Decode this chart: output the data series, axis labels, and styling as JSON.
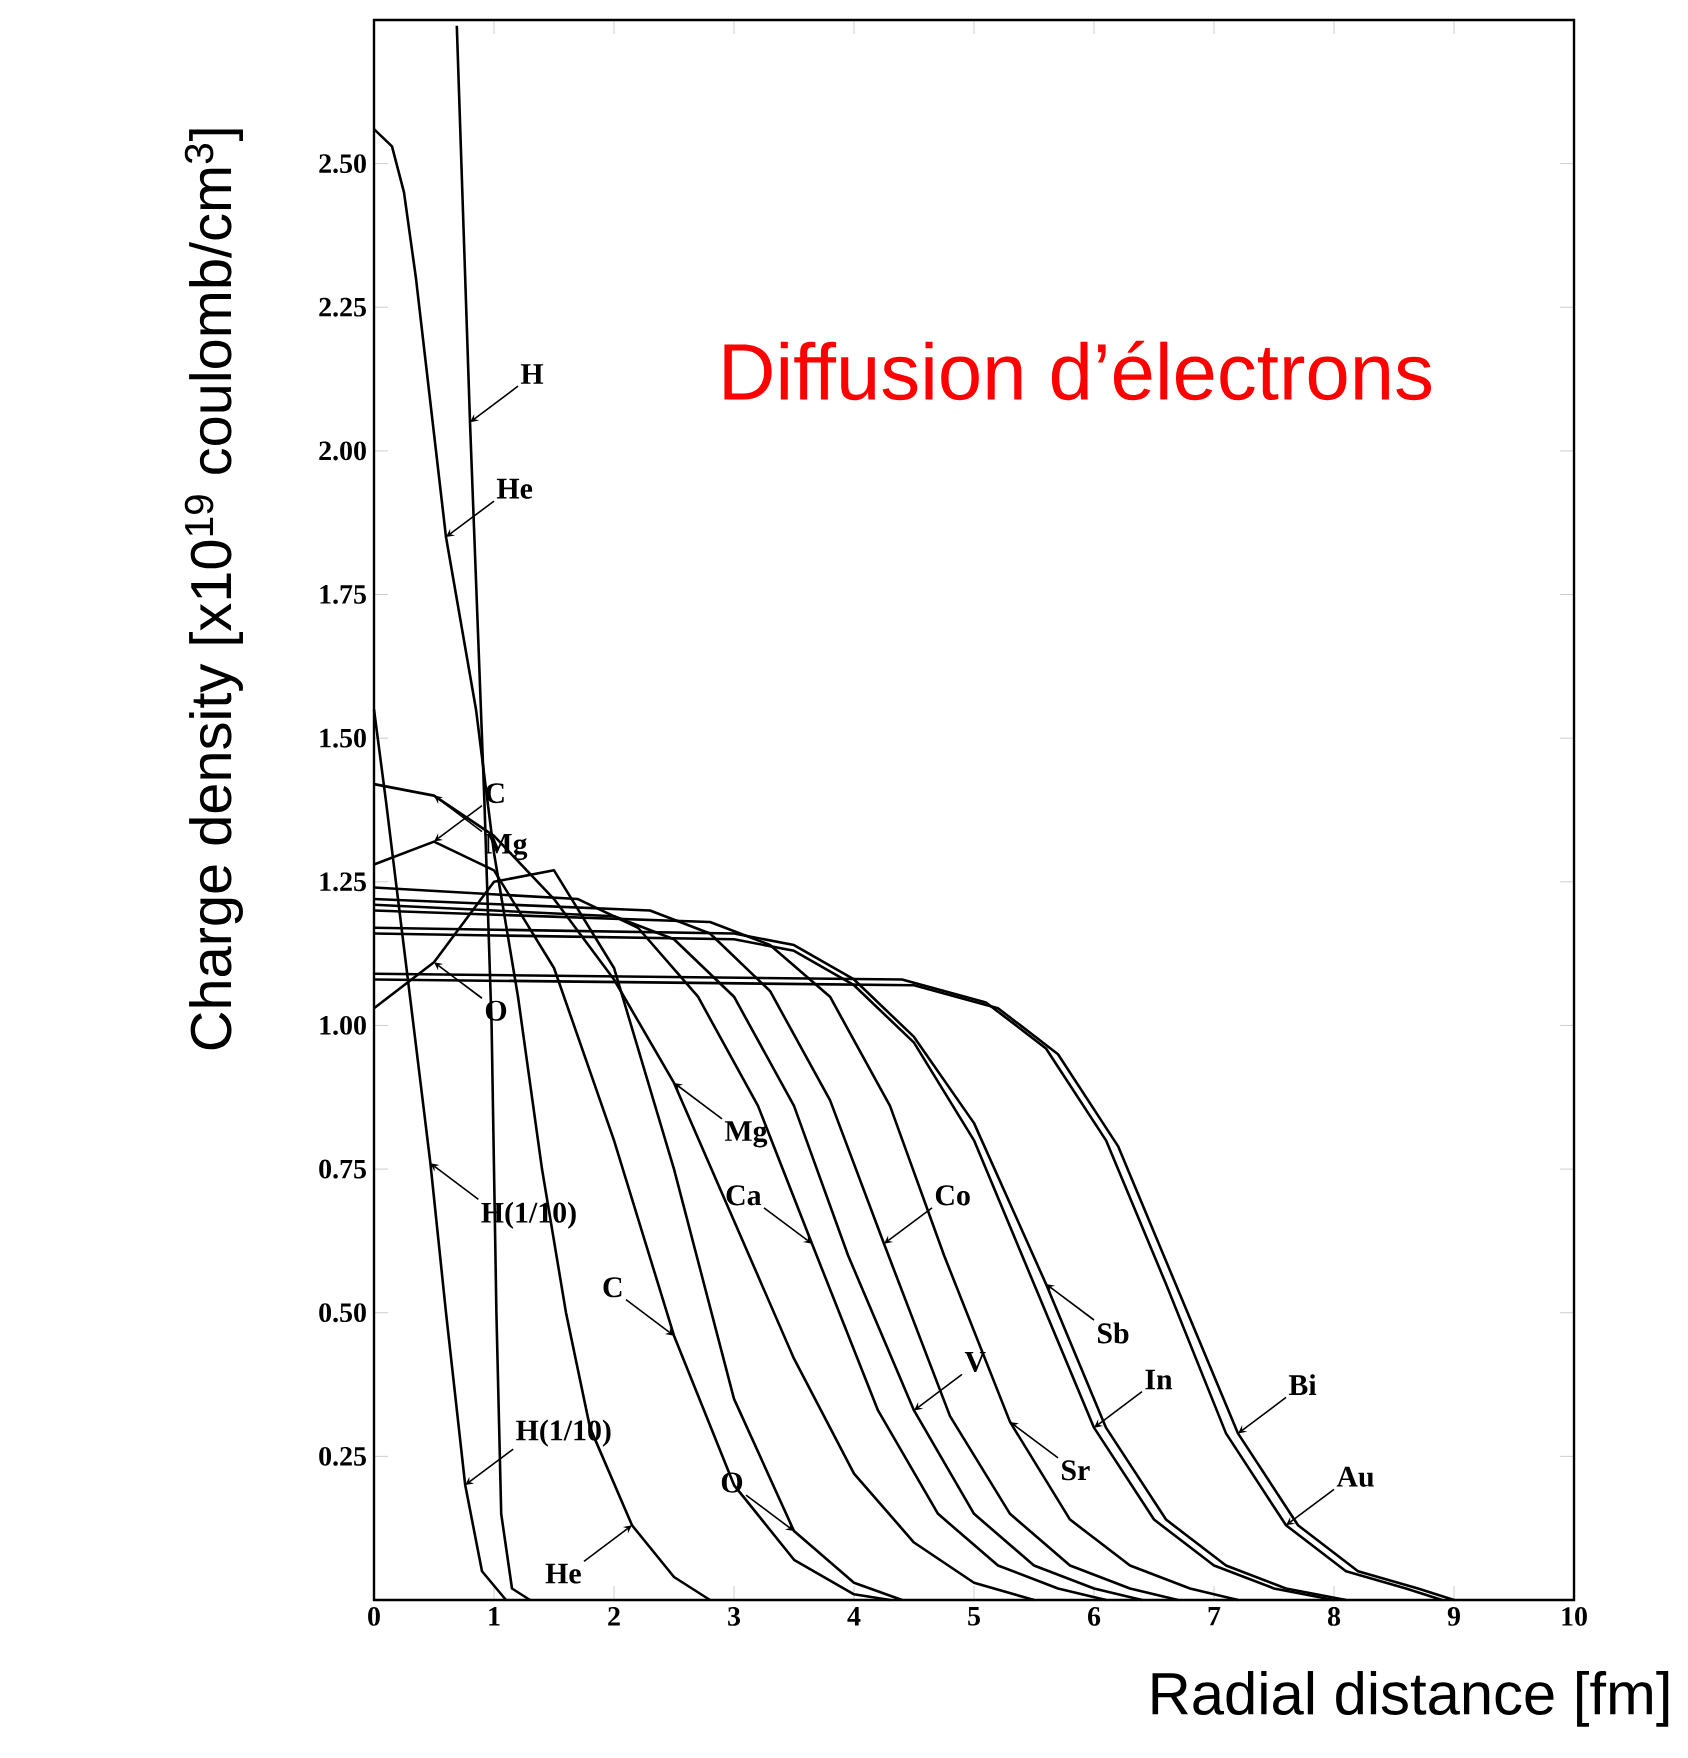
{
  "chart_data": {
    "type": "line",
    "title": "Diffusion d’électrons",
    "xlabel": "Radial distance [fm]",
    "ylabel": "Charge density [x10$^{19}$ coulomb/cm$^{3}$]",
    "xlim": [
      0,
      10
    ],
    "ylim": [
      0,
      2.75
    ],
    "xticks": [
      0,
      1,
      2,
      3,
      4,
      5,
      6,
      7,
      8,
      9,
      10
    ],
    "yticks": [
      {
        "value": 0.25,
        "label": "0.25"
      },
      {
        "value": 0.5,
        "label": "0.50"
      },
      {
        "value": 0.75,
        "label": "0.75"
      },
      {
        "value": 1.0,
        "label": "1.00"
      },
      {
        "value": 1.25,
        "label": "1.25"
      },
      {
        "value": 1.5,
        "label": "1.50"
      },
      {
        "value": 1.75,
        "label": "1.75"
      },
      {
        "value": 2.0,
        "label": "2.00"
      },
      {
        "value": 2.25,
        "label": "2.25"
      },
      {
        "value": 2.5,
        "label": "2.50"
      }
    ],
    "tick_labels": true,
    "line_style": "solid",
    "series": [
      {
        "color": "#000000",
        "x": [
          0,
          0.1,
          0.3,
          0.47,
          0.6,
          0.76,
          0.9,
          1.1
        ],
        "values": [
          1.55,
          1.39,
          1.05,
          0.76,
          0.5,
          0.2,
          0.05,
          0
        ]
      },
      {
        "color": "#000000",
        "x": [
          0.69,
          0.8,
          0.92,
          0.98,
          1.02,
          1.06,
          1.15,
          1.3
        ],
        "values": [
          2.74,
          2.05,
          1.39,
          1.0,
          0.5,
          0.15,
          0.02,
          0
        ]
      },
      {
        "color": "#000000",
        "x": [
          0,
          0.15,
          0.25,
          0.35,
          0.6,
          0.85,
          1.0,
          1.2,
          1.4,
          1.6,
          1.8,
          2.15,
          2.5,
          2.8
        ],
        "values": [
          2.56,
          2.53,
          2.45,
          2.3,
          1.85,
          1.55,
          1.3,
          1.05,
          0.75,
          0.5,
          0.3,
          0.13,
          0.04,
          0
        ]
      },
      {
        "color": "#000000",
        "x": [
          0,
          0.5,
          1.0,
          1.5,
          2.0,
          2.5,
          3.0,
          3.5,
          4.0,
          4.3
        ],
        "values": [
          1.28,
          1.32,
          1.27,
          1.1,
          0.8,
          0.46,
          0.2,
          0.07,
          0.01,
          0
        ]
      },
      {
        "color": "#000000",
        "x": [
          0,
          0.5,
          1.0,
          1.5,
          2.0,
          2.5,
          3.0,
          3.5,
          4.0,
          4.5,
          5.0,
          5.5
        ],
        "values": [
          1.42,
          1.4,
          1.33,
          1.22,
          1.08,
          0.9,
          0.66,
          0.42,
          0.22,
          0.1,
          0.03,
          0
        ]
      },
      {
        "color": "#000000",
        "x": [
          0,
          0.5,
          1.0,
          1.5,
          2.0,
          2.5,
          3.0,
          3.5,
          4.0,
          4.4
        ],
        "values": [
          1.03,
          1.11,
          1.25,
          1.27,
          1.1,
          0.75,
          0.35,
          0.12,
          0.03,
          0
        ]
      },
      {
        "color": "#000000",
        "x": [
          0,
          1.7,
          2.2,
          2.7,
          3.2,
          3.65,
          4.2,
          4.7,
          5.2,
          5.7,
          6.1
        ],
        "values": [
          1.24,
          1.22,
          1.17,
          1.05,
          0.86,
          0.62,
          0.33,
          0.15,
          0.06,
          0.02,
          0
        ]
      },
      {
        "color": "#000000",
        "x": [
          0,
          2.0,
          2.5,
          3.0,
          3.5,
          3.95,
          4.5,
          5.0,
          5.5,
          6.0,
          6.4
        ],
        "values": [
          1.21,
          1.19,
          1.15,
          1.05,
          0.86,
          0.6,
          0.33,
          0.15,
          0.06,
          0.02,
          0
        ]
      },
      {
        "color": "#000000",
        "x": [
          0,
          2.3,
          2.8,
          3.3,
          3.8,
          4.25,
          4.8,
          5.3,
          5.8,
          6.3,
          6.7
        ],
        "values": [
          1.22,
          1.2,
          1.16,
          1.06,
          0.87,
          0.62,
          0.32,
          0.15,
          0.06,
          0.02,
          0
        ]
      },
      {
        "color": "#000000",
        "x": [
          0,
          2.8,
          3.3,
          3.8,
          4.3,
          4.75,
          5.3,
          5.8,
          6.3,
          6.8,
          7.2
        ],
        "values": [
          1.2,
          1.18,
          1.14,
          1.05,
          0.86,
          0.6,
          0.31,
          0.14,
          0.06,
          0.02,
          0
        ]
      },
      {
        "color": "#000000",
        "x": [
          0,
          3.0,
          3.5,
          4.0,
          4.5,
          5.0,
          5.5,
          6.0,
          6.5,
          7.0,
          7.5,
          8.0
        ],
        "values": [
          1.16,
          1.15,
          1.13,
          1.07,
          0.97,
          0.8,
          0.55,
          0.3,
          0.14,
          0.06,
          0.02,
          0
        ]
      },
      {
        "color": "#000000",
        "x": [
          0,
          3.0,
          3.5,
          4.0,
          4.5,
          5.0,
          5.6,
          6.1,
          6.6,
          7.1,
          7.6,
          8.1
        ],
        "values": [
          1.17,
          1.16,
          1.14,
          1.08,
          0.98,
          0.83,
          0.55,
          0.3,
          0.14,
          0.06,
          0.02,
          0
        ]
      },
      {
        "color": "#000000",
        "x": [
          0,
          4.4,
          5.1,
          5.6,
          6.1,
          6.6,
          7.1,
          7.6,
          8.1,
          8.6,
          8.9
        ],
        "values": [
          1.09,
          1.08,
          1.04,
          0.96,
          0.8,
          0.55,
          0.29,
          0.13,
          0.05,
          0.02,
          0
        ]
      },
      {
        "color": "#000000",
        "x": [
          0,
          4.5,
          5.2,
          5.7,
          6.2,
          6.7,
          7.2,
          7.7,
          8.2,
          8.7,
          9.0
        ],
        "values": [
          1.08,
          1.07,
          1.03,
          0.95,
          0.79,
          0.54,
          0.29,
          0.13,
          0.05,
          0.02,
          0
        ]
      }
    ],
    "annotations": [
      {
        "text": "H",
        "x": 0.8,
        "y": 2.05
      },
      {
        "text": "He",
        "x": 0.6,
        "y": 1.85
      },
      {
        "text": "Mg",
        "x": 0.5,
        "y": 1.4
      },
      {
        "text": "C",
        "x": 0.5,
        "y": 1.32
      },
      {
        "text": "O",
        "x": 0.5,
        "y": 1.11
      },
      {
        "text": "H(1/10)",
        "x": 0.47,
        "y": 0.76
      },
      {
        "text": "Mg",
        "x": 2.5,
        "y": 0.9
      },
      {
        "text": "C",
        "x": 2.5,
        "y": 0.46
      },
      {
        "text": "He",
        "x": 2.15,
        "y": 0.13
      },
      {
        "text": "H(1/10)",
        "x": 0.76,
        "y": 0.2
      },
      {
        "text": "O",
        "x": 3.5,
        "y": 0.12
      },
      {
        "text": "Ca",
        "x": 3.65,
        "y": 0.62
      },
      {
        "text": "Co",
        "x": 4.25,
        "y": 0.62
      },
      {
        "text": "V",
        "x": 4.5,
        "y": 0.33
      },
      {
        "text": "Sr",
        "x": 5.3,
        "y": 0.31
      },
      {
        "text": "Sb",
        "x": 5.6,
        "y": 0.55
      },
      {
        "text": "In",
        "x": 6.0,
        "y": 0.3
      },
      {
        "text": "Bi",
        "x": 7.2,
        "y": 0.29
      },
      {
        "text": "Au",
        "x": 7.6,
        "y": 0.13
      }
    ]
  }
}
